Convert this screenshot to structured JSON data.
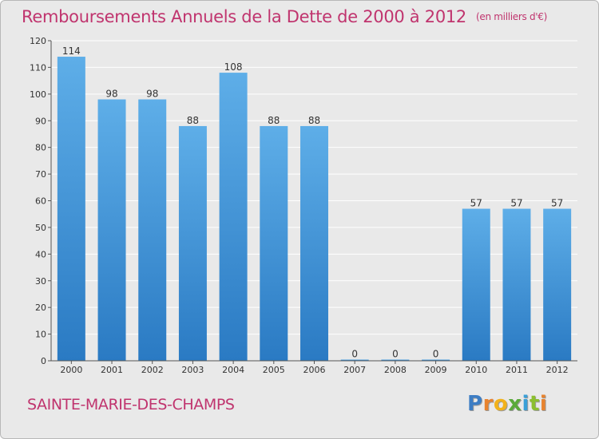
{
  "chart_data": {
    "type": "bar",
    "title": "Remboursements Annuels de la Dette de 2000 à 2012",
    "unit_note": "(en milliers d'€)",
    "categories": [
      "2000",
      "2001",
      "2002",
      "2003",
      "2004",
      "2005",
      "2006",
      "2007",
      "2008",
      "2009",
      "2010",
      "2011",
      "2012"
    ],
    "values": [
      114,
      98,
      98,
      88,
      108,
      88,
      88,
      0,
      0,
      0,
      57,
      57,
      57
    ],
    "value_labels": [
      "114",
      "98",
      "98",
      "88",
      "108",
      "88",
      "88",
      "0",
      "0",
      "0",
      "57",
      "57",
      "57"
    ],
    "ylim": [
      0,
      120
    ],
    "yticks": [
      0,
      10,
      20,
      30,
      40,
      50,
      60,
      70,
      80,
      90,
      100,
      110,
      120
    ],
    "grid": true,
    "colors": {
      "bar_light": "#5eaee8",
      "bar_dark": "#2a7ac3",
      "title": "#c0346e",
      "background": "#e9e9e9"
    }
  },
  "commune": "SAINTE-MARIE-DES-CHAMPS",
  "logo": {
    "letters": [
      "P",
      "r",
      "o",
      "x",
      "i",
      "t",
      "i"
    ],
    "colors": [
      "#3d7dc4",
      "#e8832e",
      "#f2b21b",
      "#5aaa3a",
      "#3aa0d8",
      "#8cbf2f",
      "#e8832e"
    ]
  }
}
